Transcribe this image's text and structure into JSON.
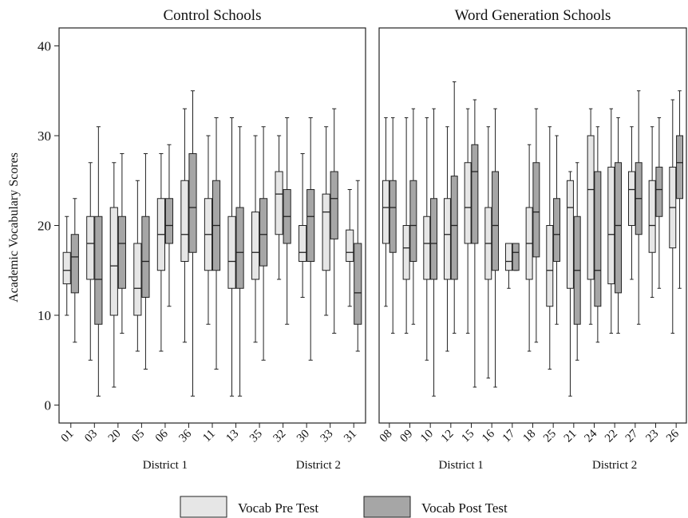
{
  "chart_data": {
    "type": "box",
    "ylabel": "Academic Vocabulary Scores",
    "ylim": [
      -2,
      42
    ],
    "yticks": [
      "0",
      "10",
      "20",
      "30",
      "40"
    ],
    "legend_position": "bottom",
    "series": [
      {
        "name": "Vocab Pre Test",
        "color": "#e6e6e6"
      },
      {
        "name": "Vocab Post Test",
        "color": "#a6a6a6"
      }
    ],
    "panels": [
      {
        "title": "Control Schools",
        "groups": [
          {
            "label": "District 1",
            "categories": [
              "01",
              "03",
              "20",
              "05",
              "06",
              "36",
              "11",
              "13",
              "35"
            ]
          },
          {
            "label": "District 2",
            "categories": [
              "32",
              "30",
              "33",
              "31"
            ]
          }
        ],
        "boxes": [
          {
            "school": "01",
            "pre": [
              10,
              13.5,
              15,
              17,
              21
            ],
            "post": [
              7,
              12.5,
              16.5,
              19,
              23
            ]
          },
          {
            "school": "03",
            "pre": [
              5,
              14,
              18,
              21,
              27
            ],
            "post": [
              1,
              9,
              14,
              21,
              31
            ]
          },
          {
            "school": "20",
            "pre": [
              2,
              10,
              15.5,
              22,
              27
            ],
            "post": [
              8,
              13,
              18,
              21,
              28
            ]
          },
          {
            "school": "05",
            "pre": [
              6,
              10,
              13,
              18,
              25
            ],
            "post": [
              4,
              12,
              16,
              21,
              28
            ]
          },
          {
            "school": "06",
            "pre": [
              6,
              15,
              19,
              23,
              28
            ],
            "post": [
              11,
              18,
              20,
              23,
              29
            ]
          },
          {
            "school": "36",
            "pre": [
              7,
              16,
              19,
              25,
              33
            ],
            "post": [
              1,
              17,
              22,
              28,
              35
            ]
          },
          {
            "school": "11",
            "pre": [
              9,
              15,
              19,
              23,
              30
            ],
            "post": [
              4,
              15,
              20,
              25,
              32
            ]
          },
          {
            "school": "13",
            "pre": [
              1,
              13,
              16,
              21,
              32
            ],
            "post": [
              1,
              13,
              17,
              22,
              31
            ]
          },
          {
            "school": "35",
            "pre": [
              7,
              14,
              17,
              21.5,
              30
            ],
            "post": [
              5,
              15.5,
              19,
              23,
              31
            ]
          },
          {
            "school": "32",
            "pre": [
              14,
              19,
              23.5,
              26,
              30
            ],
            "post": [
              9,
              18,
              21,
              24,
              32
            ]
          },
          {
            "school": "30",
            "pre": [
              12,
              16,
              17,
              20,
              28
            ],
            "post": [
              5,
              16,
              21,
              24,
              32
            ]
          },
          {
            "school": "33",
            "pre": [
              10,
              15,
              21.5,
              23.5,
              31
            ],
            "post": [
              8,
              18.5,
              23,
              26,
              33
            ]
          },
          {
            "school": "31",
            "pre": [
              11,
              16,
              17,
              19.5,
              24
            ],
            "post": [
              6,
              9,
              12.5,
              18,
              25
            ]
          }
        ]
      },
      {
        "title": "Word Generation Schools",
        "groups": [
          {
            "label": "District 1",
            "categories": [
              "08",
              "09",
              "10",
              "12",
              "15",
              "16",
              "17",
              "18"
            ]
          },
          {
            "label": "District 2",
            "categories": [
              "25",
              "21",
              "24",
              "22",
              "27",
              "23",
              "26"
            ]
          }
        ],
        "boxes": [
          {
            "school": "08",
            "pre": [
              11,
              18,
              22,
              25,
              32
            ],
            "post": [
              8,
              17,
              22,
              25,
              32
            ]
          },
          {
            "school": "09",
            "pre": [
              8,
              14,
              17.5,
              20,
              32
            ],
            "post": [
              9,
              16,
              20,
              25,
              33
            ]
          },
          {
            "school": "10",
            "pre": [
              5,
              14,
              18,
              21,
              32
            ],
            "post": [
              1,
              14,
              18,
              23,
              33
            ]
          },
          {
            "school": "12",
            "pre": [
              6,
              14,
              19,
              23,
              31
            ],
            "post": [
              8,
              14,
              20,
              25.5,
              36
            ]
          },
          {
            "school": "15",
            "pre": [
              8,
              18,
              22,
              27,
              33
            ],
            "post": [
              2,
              18,
              26,
              29,
              34
            ]
          },
          {
            "school": "16",
            "pre": [
              3,
              14,
              18,
              22,
              31
            ],
            "post": [
              2,
              15,
              20,
              26,
              33
            ]
          },
          {
            "school": "17",
            "pre": [
              13,
              15,
              16,
              18,
              18
            ],
            "post": [
              15,
              15,
              17,
              18,
              18
            ]
          },
          {
            "school": "18",
            "pre": [
              6,
              14,
              18,
              22,
              29
            ],
            "post": [
              7,
              16.5,
              21.5,
              27,
              33
            ]
          },
          {
            "school": "25",
            "pre": [
              4,
              11,
              15,
              20,
              31
            ],
            "post": [
              9,
              16,
              19,
              23,
              30
            ]
          },
          {
            "school": "21",
            "pre": [
              1,
              13,
              22,
              25,
              26
            ],
            "post": [
              5,
              9,
              15,
              21,
              27
            ]
          },
          {
            "school": "24",
            "pre": [
              9,
              14,
              24,
              30,
              33
            ],
            "post": [
              7,
              11,
              15,
              26,
              31
            ]
          },
          {
            "school": "22",
            "pre": [
              8,
              13.5,
              19,
              26.5,
              33
            ],
            "post": [
              8,
              12.5,
              20,
              27,
              32
            ]
          },
          {
            "school": "27",
            "pre": [
              14,
              20,
              24,
              26,
              31
            ],
            "post": [
              9,
              19,
              23,
              27,
              35
            ]
          },
          {
            "school": "23",
            "pre": [
              12,
              17,
              20,
              25,
              31
            ],
            "post": [
              13,
              21,
              24,
              26.5,
              32
            ]
          },
          {
            "school": "26",
            "pre": [
              8,
              17.5,
              22,
              26.5,
              34
            ],
            "post": [
              13,
              23,
              27,
              30,
              35
            ]
          }
        ]
      }
    ]
  }
}
